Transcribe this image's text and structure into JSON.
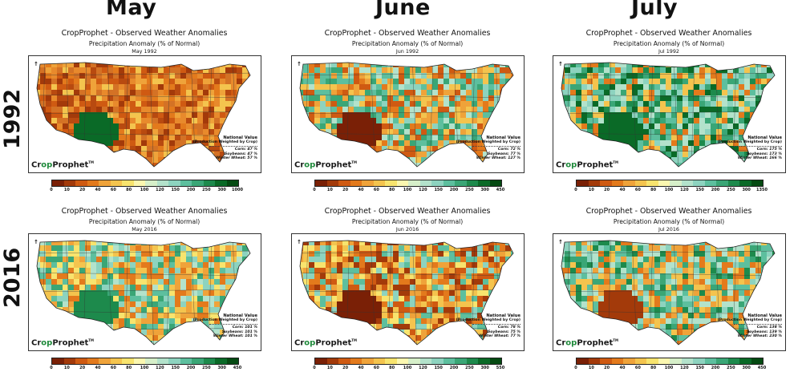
{
  "months": [
    "May",
    "June",
    "July"
  ],
  "years": [
    "1992",
    "2016"
  ],
  "panel_title": "CropProphet - Observed Weather Anomalies",
  "panel_subtitle": "Precipitation Anomaly (% of Normal)",
  "national_header": "National Value",
  "national_subheader": "(Production Weighted by Crop)",
  "logo": {
    "crop": "Cr",
    "op": "op",
    "prophet": "Prophet",
    "tm": "TM"
  },
  "north_mark": "↑",
  "colorscale": [
    "#7a2006",
    "#a33a0a",
    "#cf5a12",
    "#e37a1c",
    "#efa33a",
    "#f4c44e",
    "#f8e46e",
    "#fbf7b0",
    "#d6efc9",
    "#b3e2cb",
    "#8dd3bf",
    "#5dbf9e",
    "#3aa676",
    "#1d8a4c",
    "#0a6a27",
    "#054a12"
  ],
  "panels": [
    {
      "id": "may-1992",
      "date": "May 1992",
      "ticks": [
        "0",
        "10",
        "20",
        "40",
        "60",
        "80",
        "100",
        "120",
        "150",
        "200",
        "250",
        "300",
        "1000"
      ],
      "values": {
        "corn": "Corn:",
        "corn_v": "47 %",
        "soy": "Soybeans:",
        "soy_v": "47 %",
        "ww": "Winter Wheat:",
        "ww_v": "57 %"
      },
      "palette": [
        "#cf5a12",
        "#e37a1c",
        "#efa33a",
        "#a33a0a",
        "#f4c44e",
        "#d47225",
        "#b84a10",
        "#e88a2c"
      ],
      "wet": "#0a6a27"
    },
    {
      "id": "jun-1992",
      "date": "Jun 1992",
      "ticks": [
        "0",
        "10",
        "20",
        "40",
        "60",
        "80",
        "100",
        "120",
        "150",
        "200",
        "250",
        "300",
        "450"
      ],
      "values": {
        "corn": "Corn:",
        "corn_v": "72 %",
        "soy": "Soybeans:",
        "soy_v": "77 %",
        "ww": "Winter Wheat:",
        "ww_v": "127 %"
      },
      "palette": [
        "#8dd3bf",
        "#5dbf9e",
        "#e37a1c",
        "#efa33a",
        "#b3e2cb",
        "#cf5a12",
        "#f4c44e",
        "#3aa676"
      ],
      "wet": "#7a2006"
    },
    {
      "id": "jul-1992",
      "date": "Jul 1992",
      "ticks": [
        "0",
        "10",
        "20",
        "40",
        "60",
        "80",
        "100",
        "120",
        "150",
        "200",
        "250",
        "300",
        "1350"
      ],
      "values": {
        "corn": "Corn:",
        "corn_v": "175 %",
        "soy": "Soybeans:",
        "soy_v": "173 %",
        "ww": "Winter Wheat:",
        "ww_v": "166 %"
      },
      "palette": [
        "#3aa676",
        "#5dbf9e",
        "#1d8a4c",
        "#8dd3bf",
        "#b3e2cb",
        "#0a6a27",
        "#e37a1c",
        "#f4c44e"
      ],
      "wet": "#0a6a27"
    },
    {
      "id": "may-2016",
      "date": "May 2016",
      "ticks": [
        "0",
        "10",
        "20",
        "40",
        "60",
        "80",
        "100",
        "120",
        "150",
        "200",
        "250",
        "300",
        "450"
      ],
      "values": {
        "corn": "Corn:",
        "corn_v": "101 %",
        "soy": "Soybeans:",
        "soy_v": "101 %",
        "ww": "Winter Wheat:",
        "ww_v": "101 %"
      },
      "palette": [
        "#f8e46e",
        "#f4c44e",
        "#8dd3bf",
        "#5dbf9e",
        "#efa33a",
        "#b3e2cb",
        "#3aa676",
        "#e37a1c"
      ],
      "wet": "#1d8a4c"
    },
    {
      "id": "jun-2016",
      "date": "Jun 2016",
      "ticks": [
        "0",
        "10",
        "20",
        "40",
        "60",
        "80",
        "100",
        "120",
        "150",
        "200",
        "250",
        "300",
        "550"
      ],
      "values": {
        "corn": "Corn:",
        "corn_v": "78 %",
        "soy": "Soybeans:",
        "soy_v": "75 %",
        "ww": "Winter Wheat:",
        "ww_v": "77 %"
      },
      "palette": [
        "#efa33a",
        "#e37a1c",
        "#f4c44e",
        "#cf5a12",
        "#8dd3bf",
        "#f8e46e",
        "#5dbf9e",
        "#a33a0a"
      ],
      "wet": "#7a2006"
    },
    {
      "id": "jul-2016",
      "date": "Jul 2016",
      "ticks": [
        "0",
        "10",
        "20",
        "40",
        "60",
        "80",
        "100",
        "120",
        "150",
        "200",
        "250",
        "300",
        "450"
      ],
      "values": {
        "corn": "Corn:",
        "corn_v": "138 %",
        "soy": "Soybeans:",
        "soy_v": "139 %",
        "ww": "Winter Wheat:",
        "ww_v": "230 %"
      },
      "palette": [
        "#5dbf9e",
        "#8dd3bf",
        "#3aa676",
        "#f4c44e",
        "#efa33a",
        "#b3e2cb",
        "#e37a1c",
        "#1d8a4c"
      ],
      "wet": "#a33a0a"
    }
  ]
}
